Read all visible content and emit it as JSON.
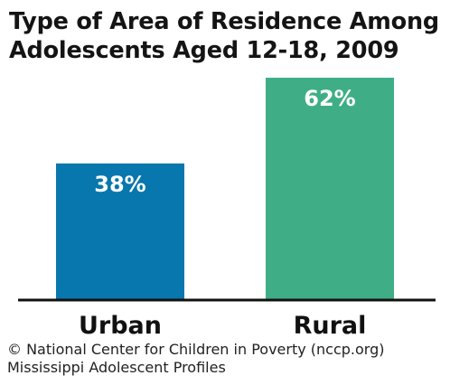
{
  "chart_data": {
    "type": "bar",
    "title": [
      "Type of Area of Residence Among",
      "Adolescents Aged 12-18, 2009"
    ],
    "categories": [
      "Urban",
      "Rural"
    ],
    "values": [
      38,
      62
    ],
    "value_labels": [
      "38%",
      "62%"
    ],
    "colors": [
      "#0777AD",
      "#3FAE86"
    ],
    "xlabel": "",
    "ylabel": "",
    "ylim": [
      0,
      62
    ],
    "grid": false,
    "legend": "none"
  },
  "credit": {
    "line1": "© National Center for Children in Poverty (nccp.org)",
    "line2": "Mississippi Adolescent Profiles"
  }
}
